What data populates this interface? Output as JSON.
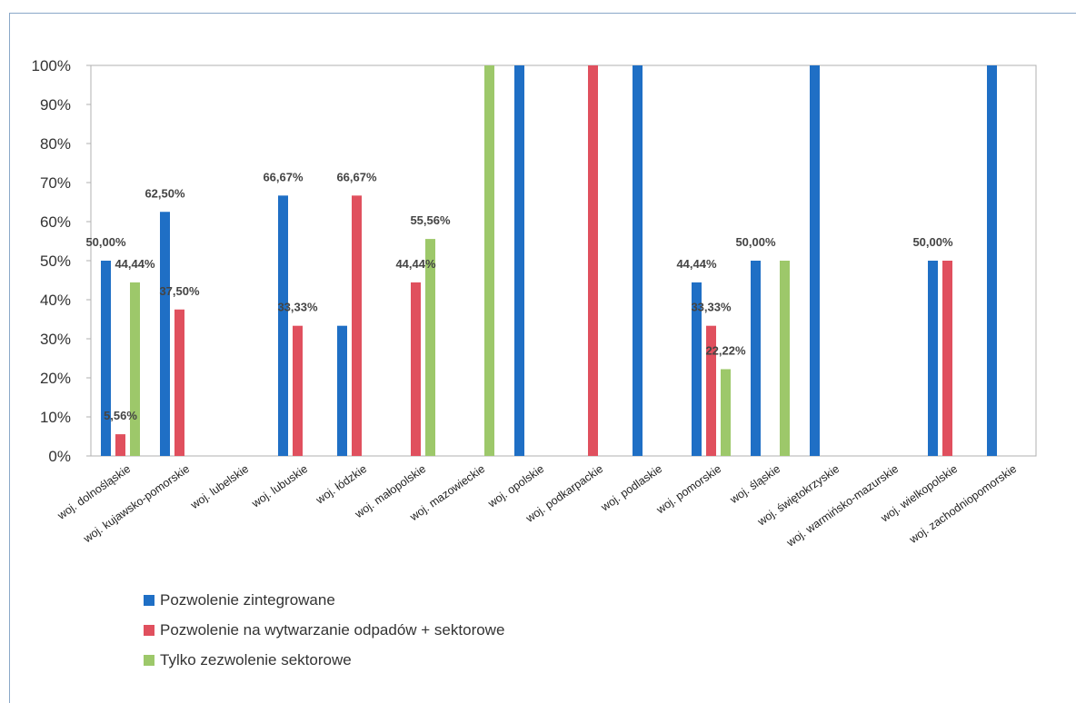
{
  "chart_data": {
    "type": "bar",
    "categories": [
      "woj. dolnośląskie",
      "woj. kujawsko-pomorskie",
      "woj. lubelskie",
      "woj. lubuskie",
      "woj. łódzkie",
      "woj. małopolskie",
      "woj. mazowieckie",
      "woj. opolskie",
      "woj. podkarpackie",
      "woj. podlaskie",
      "woj. pomorskie",
      "woj. śląskie",
      "woj. świętokrzyskie",
      "woj. warmińsko-mazurskie",
      "woj. wielkopolskie",
      "woj. zachodniopomorskie"
    ],
    "series": [
      {
        "name": "Pozwolenie zintegrowane",
        "color": "#1f6fc5",
        "values": [
          50.0,
          62.5,
          0,
          66.67,
          33.33,
          0,
          0,
          100,
          0,
          100,
          44.44,
          50.0,
          100,
          0,
          50.0,
          100
        ]
      },
      {
        "name": "Pozwolenie na wytwarzanie odpadów + sektorowe",
        "color": "#e0505e",
        "values": [
          5.56,
          37.5,
          0,
          33.33,
          66.67,
          44.44,
          0,
          0,
          100,
          0,
          33.33,
          0,
          0,
          0,
          50.0,
          0
        ]
      },
      {
        "name": "Tylko zezwolenie sektorowe",
        "color": "#9dc86a",
        "values": [
          44.44,
          0,
          0,
          0,
          0,
          55.56,
          100,
          0,
          0,
          0,
          22.22,
          50.0,
          0,
          0,
          0,
          0
        ]
      }
    ],
    "ylim": [
      0,
      100
    ],
    "y_ticks": [
      "0%",
      "10%",
      "20%",
      "30%",
      "40%",
      "50%",
      "60%",
      "70%",
      "80%",
      "90%",
      "100%"
    ],
    "data_labels": [
      {
        "category": 0,
        "series": 0,
        "text": "50,00%"
      },
      {
        "category": 0,
        "series": 1,
        "text": "5,56%"
      },
      {
        "category": 0,
        "series": 2,
        "text": "44,44%"
      },
      {
        "category": 1,
        "series": 0,
        "text": "62,50%"
      },
      {
        "category": 1,
        "series": 1,
        "text": "37,50%"
      },
      {
        "category": 3,
        "series": 0,
        "text": "66,67%"
      },
      {
        "category": 3,
        "series": 1,
        "text": "33,33%"
      },
      {
        "category": 4,
        "series": 1,
        "text": "66,67%"
      },
      {
        "category": 5,
        "series": 1,
        "text": "44,44%"
      },
      {
        "category": 5,
        "series": 2,
        "text": "55,56%"
      },
      {
        "category": 10,
        "series": 0,
        "text": "44,44%"
      },
      {
        "category": 10,
        "series": 1,
        "text": "33,33%"
      },
      {
        "category": 10,
        "series": 2,
        "text": "22,22%"
      },
      {
        "category": 11,
        "series": 0,
        "text": "50,00%"
      },
      {
        "category": 14,
        "series": 0,
        "text": "50,00%"
      }
    ],
    "grid": false,
    "legend_position": "bottom-left"
  },
  "legend": [
    {
      "label": "Pozwolenie zintegrowane",
      "color": "#1f6fc5"
    },
    {
      "label": "Pozwolenie na wytwarzanie odpadów + sektorowe",
      "color": "#e0505e"
    },
    {
      "label": "Tylko zezwolenie sektorowe",
      "color": "#9dc86a"
    }
  ]
}
